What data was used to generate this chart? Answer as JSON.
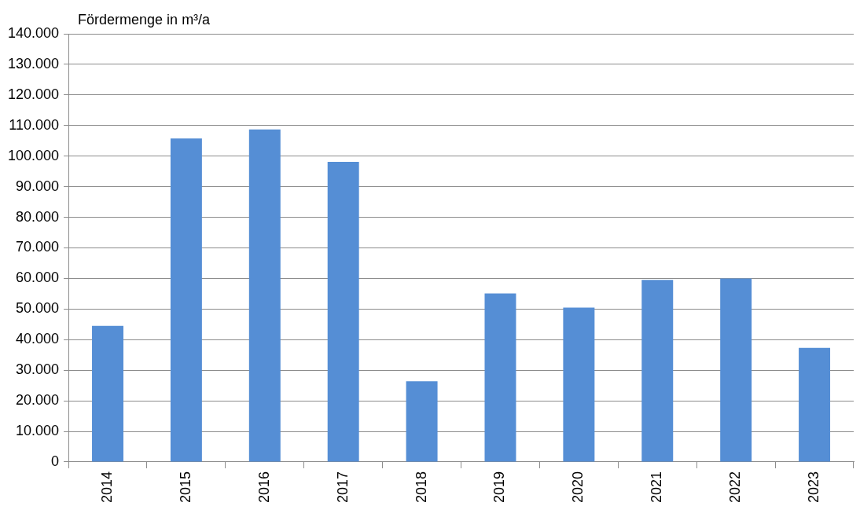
{
  "chart_data": {
    "type": "bar",
    "ylabel": "Fördermenge in m³/a",
    "categories": [
      "2014",
      "2015",
      "2016",
      "2017",
      "2018",
      "2019",
      "2020",
      "2021",
      "2022",
      "2023"
    ],
    "values": [
      44500,
      105800,
      108700,
      98100,
      26400,
      55100,
      50500,
      59500,
      60000,
      37300
    ],
    "color": "#558ed5",
    "ylim": [
      0,
      140000
    ],
    "yticks": [
      {
        "value": 0,
        "label": "0"
      },
      {
        "value": 10000,
        "label": "10.000"
      },
      {
        "value": 20000,
        "label": "20.000"
      },
      {
        "value": 30000,
        "label": "30.000"
      },
      {
        "value": 40000,
        "label": "40.000"
      },
      {
        "value": 50000,
        "label": "50.000"
      },
      {
        "value": 60000,
        "label": "60.000"
      },
      {
        "value": 70000,
        "label": "70.000"
      },
      {
        "value": 80000,
        "label": "80.000"
      },
      {
        "value": 90000,
        "label": "90.000"
      },
      {
        "value": 100000,
        "label": "100.000"
      },
      {
        "value": 110000,
        "label": "110.000"
      },
      {
        "value": 120000,
        "label": "120.000"
      },
      {
        "value": 130000,
        "label": "130.000"
      },
      {
        "value": 140000,
        "label": "140.000"
      }
    ],
    "grid": "y"
  }
}
